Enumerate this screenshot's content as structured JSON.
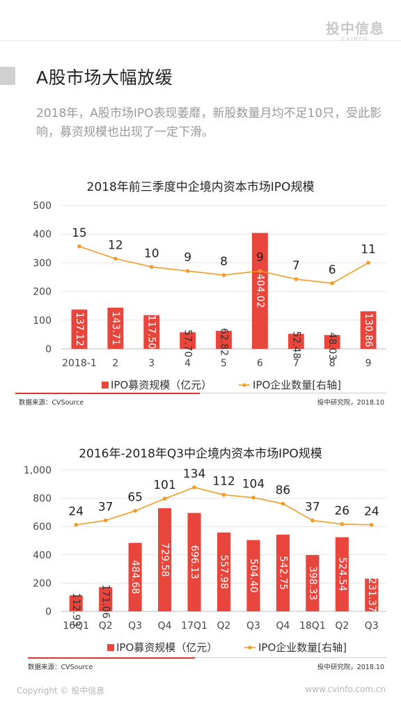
{
  "brand": {
    "name": "投中信息",
    "sub": "CVINFO"
  },
  "section_title": "A股市场大幅放缓",
  "intro": "2018年，A股市场IPO表现萎靡，新股数量月均不足10只，受此影响，募资规模也出现了一定下滑。",
  "colors": {
    "bar": "#e8453c",
    "line": "#f59a23",
    "accent_red": "#d9342b",
    "axis_text": "#444444",
    "grid": "#e6e6e6"
  },
  "charts": [
    {
      "title": "2018年前三季度中企境内资本市场IPO规模",
      "legend_bar": "IPO募资规模（亿元）",
      "legend_line": "IPO企业数量[右轴]",
      "source": "数据来源：CVSource",
      "org": "投中研究院，2018.10"
    },
    {
      "title": "2016年-2018年Q3中企境内资本市场IPO规模",
      "legend_bar": "IPO募资规模（亿元）",
      "legend_line": "IPO企业数量[右轴]",
      "source": "数据来源：CVSource",
      "org": "投中研究院，2018.10"
    }
  ],
  "chart_data": [
    {
      "type": "bar",
      "title": "2018年前三季度中企境内资本市场IPO规模",
      "categories": [
        "2018-1",
        "2",
        "3",
        "4",
        "5",
        "6",
        "7",
        "8",
        "9"
      ],
      "y_ticks": [
        "0",
        "100",
        "200",
        "300",
        "400",
        "500"
      ],
      "ylim": [
        0,
        500
      ],
      "series": [
        {
          "name": "IPO募资规模（亿元）",
          "type": "bar",
          "axis": "left",
          "values": [
            137.12,
            143.71,
            117.5,
            57.7,
            62.82,
            404.02,
            52.48,
            48.03,
            130.86
          ],
          "labels": [
            "137.12",
            "143.71",
            "117.50",
            "57.70",
            "62.82",
            "404.02",
            "52.48",
            "48.03",
            "130.86"
          ]
        },
        {
          "name": "IPO企业数量[右轴]",
          "type": "line",
          "axis": "right",
          "values": [
            15,
            12,
            10,
            9,
            8,
            9,
            7,
            6,
            11
          ],
          "labels": [
            "15",
            "12",
            "10",
            "9",
            "8",
            "9",
            "7",
            "6",
            "11"
          ]
        }
      ],
      "right_axis_range": [
        -10,
        25
      ],
      "grid": true,
      "legend": "bottom"
    },
    {
      "type": "bar",
      "title": "2016年-2018年Q3中企境内资本市场IPO规模",
      "categories": [
        "16Q1",
        "Q2",
        "Q3",
        "Q4",
        "17Q1",
        "Q2",
        "Q3",
        "Q4",
        "18Q1",
        "Q2",
        "Q3"
      ],
      "y_ticks": [
        "0",
        "200",
        "400",
        "600",
        "800",
        "1,000"
      ],
      "ylim": [
        0,
        1000
      ],
      "series": [
        {
          "name": "IPO募资规模（亿元）",
          "type": "bar",
          "axis": "left",
          "values": [
            112.93,
            171.06,
            484.68,
            729.58,
            696.13,
            557.98,
            504.4,
            542.75,
            398.33,
            524.54,
            231.37
          ],
          "labels": [
            "112.93",
            "171.06",
            "484.68",
            "729.58",
            "696.13",
            "557.98",
            "504.40",
            "542.75",
            "398.33",
            "524.54",
            "231.37"
          ]
        },
        {
          "name": "IPO企业数量[右轴]",
          "type": "line",
          "axis": "right",
          "values": [
            24,
            37,
            65,
            101,
            134,
            112,
            104,
            86,
            37,
            26,
            24
          ],
          "labels": [
            "24",
            "37",
            "65",
            "101",
            "134",
            "112",
            "104",
            "86",
            "37",
            "26",
            "24"
          ]
        }
      ],
      "right_axis_range": [
        -230,
        185
      ],
      "grid": true,
      "legend": "bottom"
    }
  ],
  "footer": {
    "copyright": "Copyright © 投中信息",
    "url": "www.cvinfo.com.cn"
  }
}
